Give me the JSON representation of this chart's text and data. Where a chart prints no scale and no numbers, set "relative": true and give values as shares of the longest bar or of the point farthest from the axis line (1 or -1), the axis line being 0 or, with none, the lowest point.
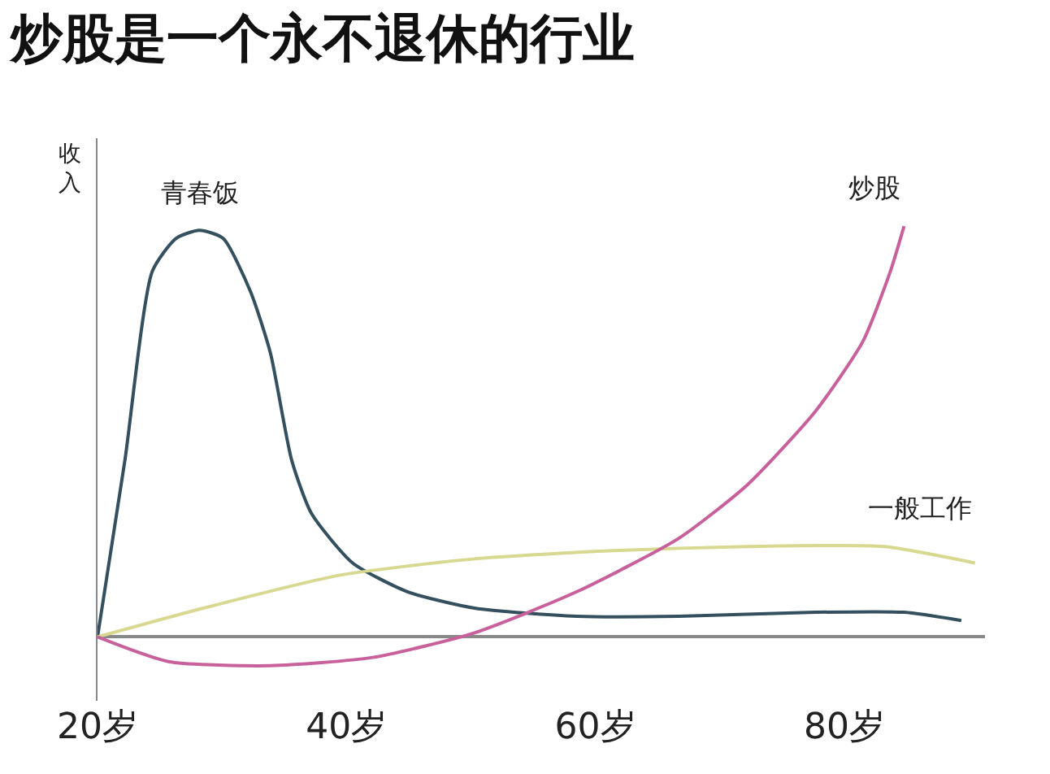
{
  "chart_data": {
    "type": "line",
    "title": "炒股是一个永不退休的行业",
    "ylabel": "收入",
    "relative": true,
    "legend": false,
    "marker": "none",
    "line_style": "solid",
    "xlim": [
      20,
      91.3
    ],
    "xticks": [
      {
        "value": 20,
        "label": "20岁"
      },
      {
        "value": 40,
        "label": "40岁"
      },
      {
        "value": 60,
        "label": "60岁"
      },
      {
        "value": 80,
        "label": "80岁"
      }
    ],
    "series": [
      {
        "name": "青春饭",
        "color": "#34505e",
        "x": [
          20,
          22.2,
          24.4,
          26.3,
          28.2,
          30.1,
          32.3,
          33.9,
          35.6,
          37.2,
          40.5,
          44.9,
          50.3,
          58.5,
          66.7,
          77.7,
          84.8,
          89.4
        ],
        "values": [
          0,
          0.43,
          0.89,
          0.97,
          0.99,
          0.97,
          0.84,
          0.69,
          0.43,
          0.3,
          0.18,
          0.11,
          0.07,
          0.05,
          0.05,
          0.06,
          0.06,
          0.04
        ]
      },
      {
        "name": "一般工作",
        "color": "#d8d890",
        "x": [
          20,
          28.5,
          39.4,
          50.3,
          61.3,
          72.2,
          83.2,
          90.5
        ],
        "values": [
          0,
          0.07,
          0.15,
          0.19,
          0.21,
          0.22,
          0.22,
          0.18
        ]
      },
      {
        "name": "炒股",
        "color": "#c8609c",
        "x": [
          20,
          25.7,
          33.9,
          42.1,
          50.3,
          58.5,
          66.7,
          72.2,
          77.7,
          81.5,
          83.7,
          84.8
        ],
        "values": [
          0,
          -0.06,
          -0.07,
          -0.05,
          0.01,
          0.11,
          0.24,
          0.37,
          0.55,
          0.72,
          0.89,
          1.0
        ]
      }
    ]
  }
}
